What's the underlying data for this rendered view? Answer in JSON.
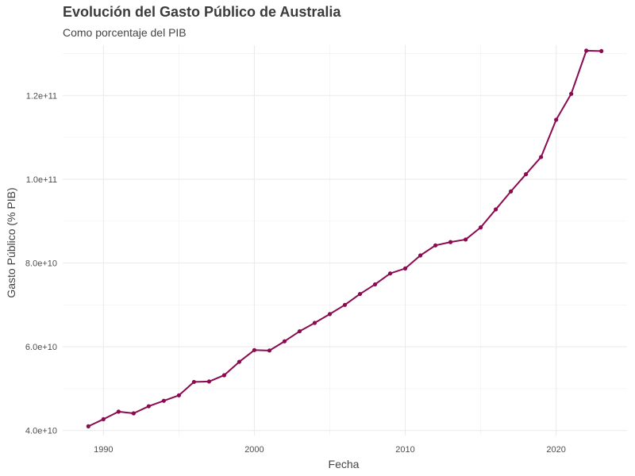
{
  "chart_data": {
    "type": "line",
    "title": "Evolución del Gasto Público de Australia",
    "subtitle": "Como porcentaje del PIB",
    "xlabel": "Fecha",
    "ylabel": "Gasto Público (% PIB)",
    "xlim": [
      1987.3,
      2024.7
    ],
    "ylim": [
      38800000000,
      132000000000
    ],
    "x_ticks": [
      1990,
      2000,
      2010,
      2020
    ],
    "x_tick_labels": [
      "1990",
      "2000",
      "2010",
      "2020"
    ],
    "y_ticks": [
      40000000000,
      60000000000,
      80000000000,
      100000000000,
      120000000000
    ],
    "y_tick_labels": [
      "4.0e+10",
      "6.0e+10",
      "8.0e+10",
      "1.0e+11",
      "1.2e+11"
    ],
    "grid": true,
    "legend": "none",
    "series": [
      {
        "color": "#8b0a50",
        "points": [
          [
            1989,
            41000000000
          ],
          [
            1990,
            42700000000
          ],
          [
            1991,
            44500000000
          ],
          [
            1992,
            44100000000
          ],
          [
            1993,
            45800000000
          ],
          [
            1994,
            47100000000
          ],
          [
            1995,
            48400000000
          ],
          [
            1996,
            51600000000
          ],
          [
            1997,
            51700000000
          ],
          [
            1998,
            53200000000
          ],
          [
            1999,
            56400000000
          ],
          [
            2000,
            59200000000
          ],
          [
            2001,
            59100000000
          ],
          [
            2002,
            61300000000
          ],
          [
            2003,
            63700000000
          ],
          [
            2004,
            65700000000
          ],
          [
            2005,
            67800000000
          ],
          [
            2006,
            70000000000
          ],
          [
            2007,
            72600000000
          ],
          [
            2008,
            74900000000
          ],
          [
            2009,
            77500000000
          ],
          [
            2010,
            78700000000
          ],
          [
            2011,
            81800000000
          ],
          [
            2012,
            84200000000
          ],
          [
            2013,
            85000000000
          ],
          [
            2014,
            85600000000
          ],
          [
            2015,
            88500000000
          ],
          [
            2016,
            92800000000
          ],
          [
            2017,
            97100000000
          ],
          [
            2018,
            101200000000
          ],
          [
            2019,
            105300000000
          ],
          [
            2020,
            114200000000
          ],
          [
            2021,
            120400000000
          ],
          [
            2022,
            130700000000
          ],
          [
            2023,
            130600000000
          ]
        ]
      }
    ]
  }
}
